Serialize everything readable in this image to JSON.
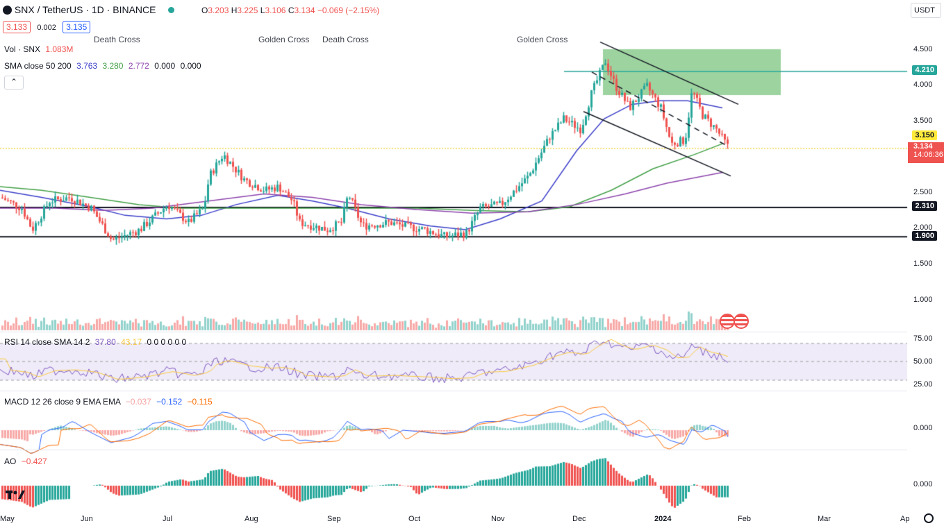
{
  "header": {
    "symbol": "SNX / TetherUS · 1D · BINANCE",
    "open_label": "O",
    "open": "3.203",
    "high_label": "H",
    "high": "3.225",
    "low_label": "L",
    "low": "3.106",
    "close_label": "C",
    "close": "3.134",
    "change": "−0.069 (−2.15%)",
    "bid": "3.133",
    "spread": "0.002",
    "ask": "3.135",
    "currency": "USDT"
  },
  "indicators": {
    "vol_label": "Vol · SNX",
    "vol_value": "1.083M",
    "sma_label": "SMA close 50 200",
    "sma_v1": "3.763",
    "sma_v2": "3.280",
    "sma_v3": "2.772",
    "sma_v4": "0.000",
    "sma_v5": "0.000",
    "rsi_label": "RSI 14 close SMA 14 2",
    "rsi_v1": "37.80",
    "rsi_v2": "43.17",
    "rsi_rest": "0 0 0 0 0 0",
    "macd_label": "MACD 12 26 close 9 EMA EMA",
    "macd_v1": "−0.037",
    "macd_v2": "−0.152",
    "macd_v3": "−0.115",
    "ao_label": "AO",
    "ao_value": "−0.427"
  },
  "crosses": [
    "Death Cross",
    "Golden Cross",
    "Death Cross",
    "Golden Cross"
  ],
  "price_axis": [
    "4.500",
    "4.000",
    "3.500",
    "2.500",
    "2.000",
    "1.500",
    "1.000"
  ],
  "price_tags": {
    "resistance": "4.210",
    "sma_tag": "3.150",
    "last": "3.134",
    "countdown": "14:06:36",
    "support1": "2.310",
    "support2": "1.900"
  },
  "rsi_axis": [
    "75.00",
    "50.00",
    "25.00"
  ],
  "macd_axis": "0.000",
  "ao_axis": "0.000",
  "time_axis": [
    "May",
    "Jun",
    "Jul",
    "Aug",
    "Sep",
    "Oct",
    "Nov",
    "Dec",
    "2024",
    "Feb",
    "Mar",
    "Ap"
  ],
  "colors": {
    "up": "#26a69a",
    "down": "#ef5350",
    "sma50": "#3c3fc9",
    "sma200": "#43a047",
    "ma3": "#8e44ad",
    "rsi_band": "#7e57c2",
    "macd": "#2962ff",
    "signal": "#ff6d00"
  },
  "chart_data": {
    "type": "candlestick",
    "series": [
      {
        "name": "SNX / TetherUS",
        "x": [
          "May",
          "Jun",
          "Jul",
          "Aug",
          "Sep",
          "Oct",
          "Nov",
          "Dec",
          "2024",
          "Feb"
        ],
        "approx_close": [
          2.4,
          1.8,
          2.6,
          2.5,
          2.0,
          1.95,
          2.4,
          4.3,
          3.8,
          3.134
        ]
      }
    ],
    "ylim": [
      0.85,
      4.9
    ],
    "horizontal_levels": [
      4.21,
      2.31,
      1.9,
      3.134
    ]
  }
}
